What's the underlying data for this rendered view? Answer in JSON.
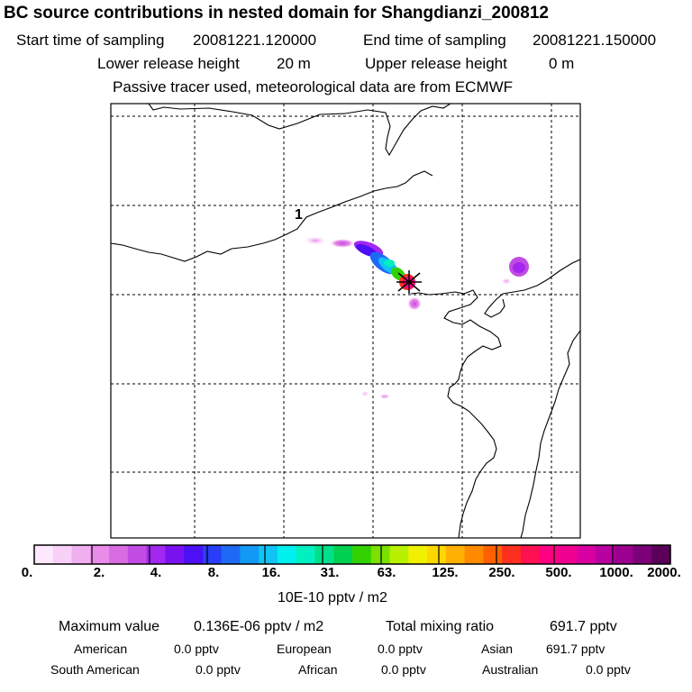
{
  "header": {
    "title": "BC  source contributions in nested domain for Shangdianzi_200812",
    "start_label": "Start time of sampling",
    "start_value": "20081221.120000",
    "end_label": "End time of sampling",
    "end_value": "20081221.150000",
    "lower_label": "Lower release height",
    "lower_value": "20 m",
    "upper_label": "Upper release height",
    "upper_value": "0 m",
    "note": "Passive tracer used, meteorological data are from ECMWF"
  },
  "map": {
    "release_marker_label": "1",
    "receptor": "Shangdianzi"
  },
  "colorbar": {
    "ticks": [
      "0.",
      "2.",
      "4.",
      "8.",
      "16.",
      "31.",
      "63.",
      "125.",
      "250.",
      "500.",
      "1000.",
      "2000."
    ],
    "unit": "10E-10 pptv / m2",
    "colors": [
      "#fde8fd",
      "#f8d0f8",
      "#f0b0f0",
      "#e98be9",
      "#d96ce0",
      "#c24ce3",
      "#a327f0",
      "#7a12f0",
      "#4d0ff3",
      "#2a3df8",
      "#1e6af5",
      "#1199f5",
      "#10c4f5",
      "#00f0f0",
      "#00f0c0",
      "#00e08a",
      "#00d050",
      "#33d000",
      "#7ae000",
      "#b8f000",
      "#f0f000",
      "#ffd700",
      "#ffb000",
      "#ff8a00",
      "#ff6000",
      "#ff3020",
      "#ff1050",
      "#ff0080",
      "#f00090",
      "#d800a0",
      "#b800a0",
      "#9c0090",
      "#7c0078",
      "#5a0058"
    ]
  },
  "summary": {
    "max_label": "Maximum value",
    "max_value": "0.136E-06 pptv / m2",
    "total_label": "Total mixing ratio",
    "total_value": "691.7 pptv",
    "regions": [
      {
        "name": "American",
        "value": "0.0 pptv"
      },
      {
        "name": "European",
        "value": "0.0 pptv"
      },
      {
        "name": "Asian",
        "value": "691.7 pptv"
      },
      {
        "name": "South American",
        "value": "0.0 pptv"
      },
      {
        "name": "African",
        "value": "0.0 pptv"
      },
      {
        "name": "Australian",
        "value": "0.0 pptv"
      }
    ]
  }
}
